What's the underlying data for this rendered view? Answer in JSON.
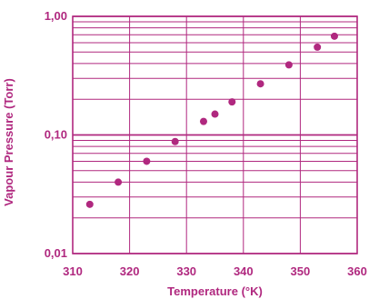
{
  "chart_data": {
    "type": "scatter",
    "xlabel": "Temperature (°K)",
    "ylabel": "Vapour Pressure (Torr)",
    "xlim": [
      310,
      360
    ],
    "ylim": [
      0.01,
      1.0
    ],
    "y_scale": "log",
    "grid": true,
    "x_ticks": [
      310,
      320,
      330,
      340,
      350,
      360
    ],
    "x_tick_labels": [
      "310",
      "320",
      "330",
      "340",
      "350",
      "360"
    ],
    "y_ticks": [
      0.01,
      0.1,
      1.0
    ],
    "y_tick_labels": [
      "0,01",
      "0,10",
      "1,00"
    ],
    "series": [
      {
        "x": [
          313,
          318,
          323,
          328,
          333,
          335,
          338,
          343,
          348,
          353,
          356
        ],
        "y": [
          0.026,
          0.04,
          0.06,
          0.088,
          0.13,
          0.15,
          0.19,
          0.27,
          0.39,
          0.55,
          0.68
        ]
      }
    ],
    "colors": {
      "accent": "#b0287f",
      "grid": "#b0287f",
      "text": "#b0287f"
    }
  }
}
